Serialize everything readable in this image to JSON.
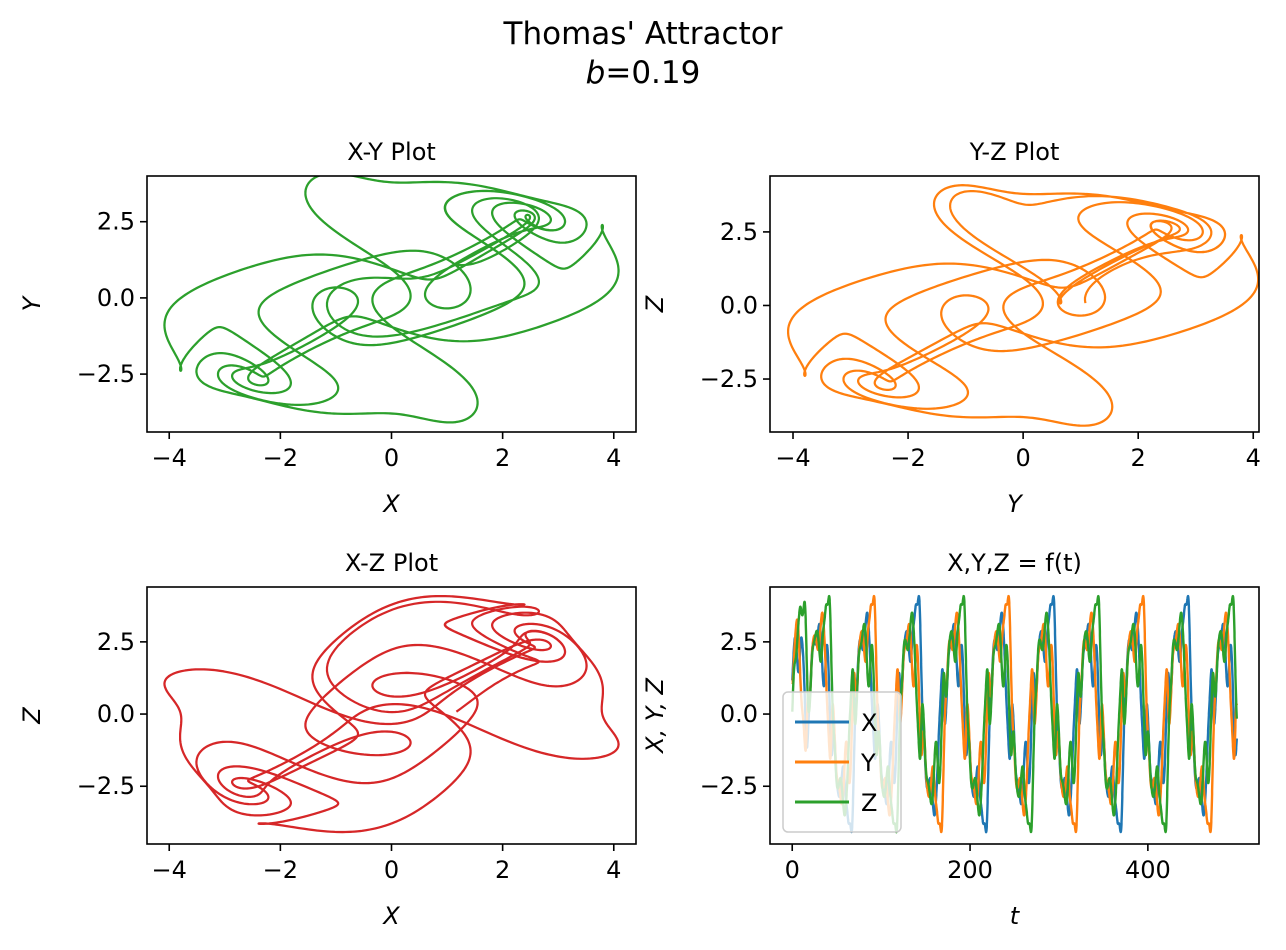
{
  "figure": {
    "title": "Thomas' Attractor",
    "subtitle_var": "b",
    "subtitle_eq": "=0.19"
  },
  "colors": {
    "X": "#1f77b4",
    "Y": "#ff7f0e",
    "Z": "#2ca02c",
    "xz": "#d62728"
  },
  "chart_data": [
    {
      "type": "line",
      "title": "X-Y Plot",
      "xlabel": "X",
      "ylabel": "Y",
      "xlim": [
        -4.4,
        4.4
      ],
      "ylim": [
        -4.4,
        4.0
      ],
      "xticks": [
        -4,
        -2,
        0,
        2,
        4
      ],
      "yticks": [
        -2.5,
        0.0,
        2.5
      ],
      "xtick_labels": [
        "−4",
        "−2",
        "0",
        "2",
        "4"
      ],
      "ytick_labels": [
        "−2.5",
        "0.0",
        "2.5"
      ],
      "series": [
        {
          "color": "#2ca02c",
          "plane": "x-y"
        }
      ]
    },
    {
      "type": "line",
      "title": "Y-Z Plot",
      "xlabel": "Y",
      "ylabel": "Z",
      "xlim": [
        -4.4,
        4.1
      ],
      "ylim": [
        -4.3,
        4.4
      ],
      "xticks": [
        -4,
        -2,
        0,
        2,
        4
      ],
      "yticks": [
        -2.5,
        0.0,
        2.5
      ],
      "xtick_labels": [
        "−4",
        "−2",
        "0",
        "2",
        "4"
      ],
      "ytick_labels": [
        "−2.5",
        "0.0",
        "2.5"
      ],
      "series": [
        {
          "color": "#ff7f0e",
          "plane": "y-z"
        }
      ]
    },
    {
      "type": "line",
      "title": "X-Z Plot",
      "xlabel": "X",
      "ylabel": "Z",
      "xlim": [
        -4.4,
        4.4
      ],
      "ylim": [
        -4.5,
        4.4
      ],
      "xticks": [
        -4,
        -2,
        0,
        2,
        4
      ],
      "yticks": [
        -2.5,
        0.0,
        2.5
      ],
      "xtick_labels": [
        "−4",
        "−2",
        "0",
        "2",
        "4"
      ],
      "ytick_labels": [
        "−2.5",
        "0.0",
        "2.5"
      ],
      "series": [
        {
          "color": "#d62728",
          "plane": "x-z"
        }
      ]
    },
    {
      "type": "line",
      "title": "X,Y,Z = f(t)",
      "xlabel": "t",
      "ylabel": "X, Y, Z",
      "xlim": [
        -25,
        525
      ],
      "ylim": [
        -4.5,
        4.4
      ],
      "xticks": [
        0,
        200,
        400
      ],
      "yticks": [
        -2.5,
        0.0,
        2.5
      ],
      "xtick_labels": [
        "0",
        "200",
        "400"
      ],
      "ytick_labels": [
        "−2.5",
        "0.0",
        "2.5"
      ],
      "t_range": [
        0,
        500
      ],
      "legend": "lower-left",
      "series": [
        {
          "name": "X",
          "color": "#1f77b4"
        },
        {
          "name": "Y",
          "color": "#ff7f0e"
        },
        {
          "name": "Z",
          "color": "#2ca02c"
        }
      ]
    }
  ]
}
